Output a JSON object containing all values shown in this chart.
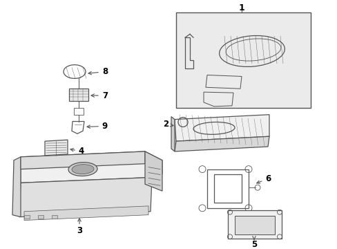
{
  "background_color": "#ffffff",
  "line_color": "#555555",
  "fill_color": "#e8e8e8",
  "label_color": "#000000",
  "figsize": [
    4.89,
    3.6
  ],
  "dpi": 100
}
